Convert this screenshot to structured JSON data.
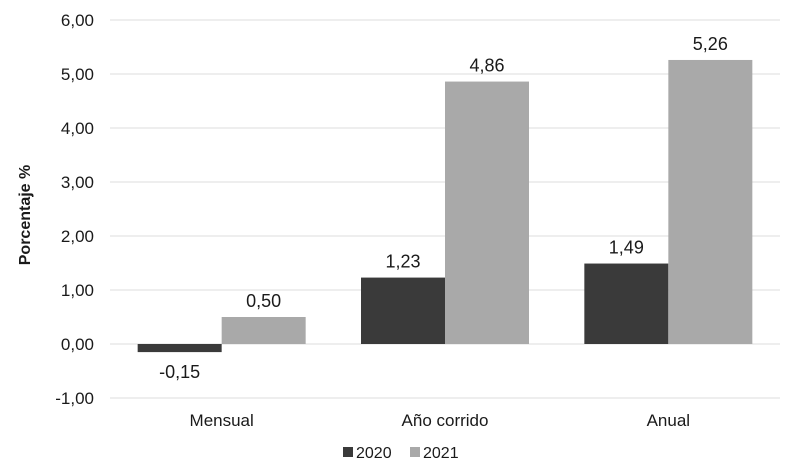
{
  "chart_data": {
    "type": "bar",
    "ylabel": "Porcentaje %",
    "categories": [
      "Mensual",
      "Año corrido",
      "Anual"
    ],
    "series": [
      {
        "name": "2020",
        "values": [
          -0.15,
          1.23,
          1.49
        ],
        "labels": [
          "-0,15",
          "1,23",
          "1,49"
        ],
        "color": "#3a3a3a"
      },
      {
        "name": "2021",
        "values": [
          0.5,
          4.86,
          5.26
        ],
        "labels": [
          "0,50",
          "4,86",
          "5,26"
        ],
        "color": "#a9a9a9"
      }
    ],
    "ylim": [
      -1,
      6
    ],
    "yticks": [
      -1,
      0,
      1,
      2,
      3,
      4,
      5,
      6
    ],
    "ytick_labels": [
      "-1,00",
      "0,00",
      "1,00",
      "2,00",
      "3,00",
      "4,00",
      "5,00",
      "6,00"
    ],
    "grid": true,
    "legend": "bottom"
  }
}
